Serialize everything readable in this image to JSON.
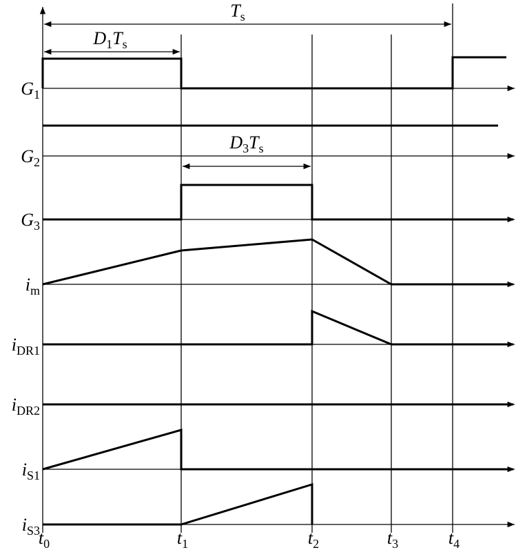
{
  "signals": [
    {
      "name": "G",
      "sub": "1"
    },
    {
      "name": "G",
      "sub": "2"
    },
    {
      "name": "G",
      "sub": "3"
    },
    {
      "name": "i",
      "sub": "m"
    },
    {
      "name": "i",
      "sub": "DR1"
    },
    {
      "name": "i",
      "sub": "DR2"
    },
    {
      "name": "i",
      "sub": "S1"
    },
    {
      "name": "i",
      "sub": "S3"
    }
  ],
  "times": [
    {
      "name": "t",
      "sub": "0"
    },
    {
      "name": "t",
      "sub": "1"
    },
    {
      "name": "t",
      "sub": "2"
    },
    {
      "name": "t",
      "sub": "3"
    },
    {
      "name": "t",
      "sub": "4"
    }
  ],
  "annotations": {
    "period": {
      "name": "T",
      "sub": "s"
    },
    "d1": {
      "duty": "D",
      "duty_sub": "1",
      "name": "T",
      "sub": "s"
    },
    "d3": {
      "duty": "D",
      "duty_sub": "3",
      "name": "T",
      "sub": "s"
    }
  }
}
